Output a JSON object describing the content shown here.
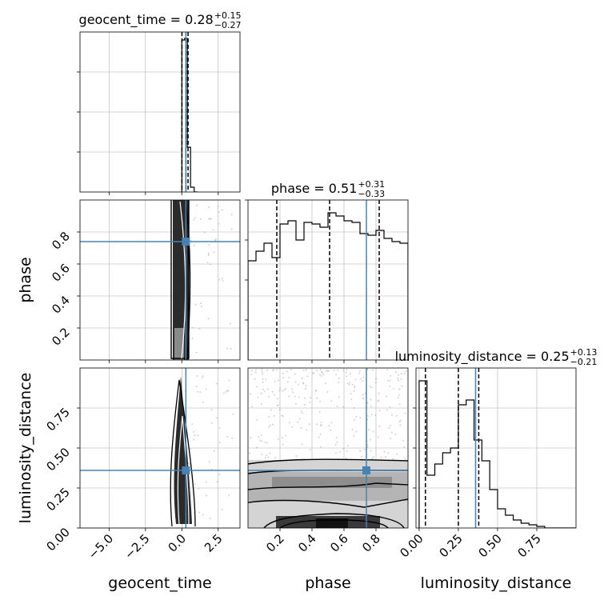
{
  "chart_data": {
    "type": "corner",
    "parameters": [
      "geocent_time",
      "phase",
      "luminosity_distance"
    ],
    "truths": {
      "geocent_time": 0.28,
      "phase": 0.74,
      "luminosity_distance": 0.36
    },
    "truth_color": "#4682b4",
    "grid": true,
    "panels": [
      {
        "id": "hist-geocent_time",
        "type": "histogram",
        "param": "geocent_time",
        "title": {
          "name": "geocent_time",
          "median": "0.28",
          "plus": "+0.15",
          "minus": "−0.27"
        },
        "xlim": [
          -7,
          4
        ],
        "ylim": [
          0,
          1
        ],
        "bin_edges": [
          0.0,
          0.19,
          0.38,
          0.6,
          0.85,
          1.1
        ],
        "counts": [
          0.95,
          0.96,
          0.28,
          0.03,
          0.0
        ],
        "quantile_lines": [
          0.01,
          0.28,
          0.43
        ],
        "xticks": [
          -5.0,
          -2.5,
          0.0,
          2.5
        ],
        "yticks": [
          0.25,
          0.5,
          0.75
        ]
      },
      {
        "id": "hist-phase",
        "type": "histogram",
        "param": "phase",
        "title": {
          "name": "phase",
          "median": "0.51",
          "plus": "+0.31",
          "minus": "−0.33"
        },
        "xlim": [
          0,
          1
        ],
        "ylim": [
          0,
          1
        ],
        "bin_edges": [
          0.0,
          0.05,
          0.1,
          0.15,
          0.2,
          0.25,
          0.3,
          0.35,
          0.4,
          0.45,
          0.5,
          0.55,
          0.6,
          0.65,
          0.7,
          0.75,
          0.8,
          0.85,
          0.9,
          0.95,
          1.0
        ],
        "counts": [
          0.62,
          0.68,
          0.73,
          0.64,
          0.85,
          0.87,
          0.75,
          0.86,
          0.85,
          0.83,
          0.92,
          0.9,
          0.87,
          0.86,
          0.79,
          0.78,
          0.81,
          0.76,
          0.74,
          0.73
        ],
        "quantile_lines": [
          0.18,
          0.51,
          0.82
        ],
        "xticks": [
          0.2,
          0.4,
          0.6,
          0.8
        ]
      },
      {
        "id": "hist-luminosity_distance",
        "type": "histogram",
        "param": "luminosity_distance",
        "title": {
          "name": "luminosity_distance",
          "median": "0.25",
          "plus": "+0.13",
          "minus": "−0.21"
        },
        "xlim": [
          -0.02,
          1.0
        ],
        "ylim": [
          0,
          1
        ],
        "bin_edges": [
          0.0,
          0.05,
          0.1,
          0.15,
          0.2,
          0.25,
          0.3,
          0.35,
          0.4,
          0.45,
          0.5,
          0.55,
          0.6,
          0.65,
          0.7,
          0.75,
          0.8,
          0.85,
          0.9,
          0.95,
          1.0
        ],
        "counts": [
          0.92,
          0.33,
          0.4,
          0.47,
          0.5,
          0.77,
          0.8,
          0.55,
          0.42,
          0.24,
          0.12,
          0.08,
          0.05,
          0.03,
          0.02,
          0.01,
          0.0,
          0.0,
          0.0,
          0.0
        ],
        "quantile_lines": [
          0.04,
          0.25,
          0.38
        ],
        "xticks": [
          0.0,
          0.25,
          0.5,
          0.75
        ]
      },
      {
        "id": "scatter-phase-vs-geocent_time",
        "type": "2d-density",
        "x": "geocent_time",
        "y": "phase",
        "xlim": [
          -7,
          4
        ],
        "ylim": [
          0,
          1
        ],
        "yticks": [
          0.2,
          0.4,
          0.6,
          0.8
        ]
      },
      {
        "id": "scatter-luminosity_distance-vs-geocent_time",
        "type": "2d-density",
        "x": "geocent_time",
        "y": "luminosity_distance",
        "xlim": [
          -7,
          4
        ],
        "ylim": [
          0,
          1
        ],
        "xticks": [
          -5.0,
          -2.5,
          0.0,
          2.5
        ],
        "yticks": [
          0.0,
          0.25,
          0.5,
          0.75
        ]
      },
      {
        "id": "scatter-luminosity_distance-vs-phase",
        "type": "2d-density",
        "x": "phase",
        "y": "luminosity_distance",
        "xlim": [
          0,
          1
        ],
        "ylim": [
          0,
          1
        ],
        "xticks": [
          0.2,
          0.4,
          0.6,
          0.8
        ]
      }
    ],
    "tick_labels": {
      "geocent_time": [
        "−5.0",
        "−2.5",
        "0.0",
        "2.5"
      ],
      "phase": [
        "0.2",
        "0.4",
        "0.6",
        "0.8"
      ],
      "luminosity_distance": [
        "0.00",
        "0.25",
        "0.50",
        "0.75"
      ]
    },
    "axis_labels": {
      "x": [
        "geocent_time",
        "phase",
        "luminosity_distance"
      ],
      "y": [
        "phase",
        "luminosity_distance"
      ]
    }
  }
}
